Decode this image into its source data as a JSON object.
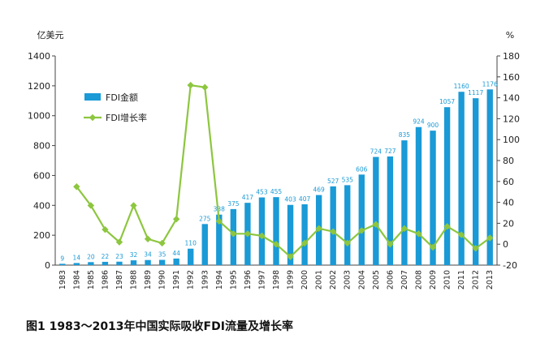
{
  "caption": "图1 1983～2013年中国实际吸收FDI流量及增长率",
  "colors": {
    "bar": "#1a9ad6",
    "line": "#8dc63f",
    "axis": "#444444"
  },
  "chart_data": {
    "type": "bar",
    "categories": [
      "1983",
      "1984",
      "1985",
      "1986",
      "1987",
      "1988",
      "1989",
      "1990",
      "1991",
      "1992",
      "1993",
      "1994",
      "1995",
      "1996",
      "1997",
      "1998",
      "1999",
      "2000",
      "2001",
      "2002",
      "2003",
      "2004",
      "2005",
      "2006",
      "2007",
      "2008",
      "2009",
      "2010",
      "2011",
      "2012",
      "2013"
    ],
    "left_unit": "亿美元",
    "right_unit": "%",
    "yticks_left": [
      0,
      200,
      400,
      600,
      800,
      1000,
      1200,
      1400
    ],
    "yticks_right": [
      -20,
      0,
      20,
      40,
      60,
      80,
      100,
      120,
      140,
      160,
      180
    ],
    "ylim_left": [
      0,
      1400
    ],
    "ylim_right": [
      -20,
      180
    ],
    "legend": {
      "position": "top-left",
      "bar_label": "FDI金额",
      "line_label": "FDI增长率"
    },
    "series": [
      {
        "name": "FDI金额",
        "type": "bar",
        "axis": "left",
        "values": [
          9,
          14,
          20,
          22,
          23,
          32,
          34,
          35,
          44,
          110,
          275,
          338,
          375,
          417,
          453,
          455,
          403,
          407,
          469,
          527,
          535,
          606,
          724,
          727,
          835,
          924,
          900,
          1057,
          1160,
          1117,
          1176
        ],
        "labels": [
          "9",
          "14",
          "20",
          "22",
          "23",
          "32",
          "34",
          "35",
          "44",
          "110",
          "275",
          "338",
          "375",
          "417",
          "453",
          "455",
          "403",
          "407",
          "469",
          "527",
          "535",
          "606",
          "724",
          "727",
          "835",
          "924",
          "900",
          "1057",
          "1160",
          "1117",
          "1176"
        ]
      },
      {
        "name": "FDI增长率",
        "type": "line",
        "axis": "right",
        "values": [
          null,
          55,
          37,
          14,
          2,
          37,
          5,
          1,
          24,
          152,
          150,
          22,
          10,
          10,
          8,
          0,
          -12,
          1,
          15,
          12,
          1,
          13,
          19,
          0,
          15,
          10,
          -3,
          17,
          9,
          -4,
          6
        ]
      }
    ]
  }
}
